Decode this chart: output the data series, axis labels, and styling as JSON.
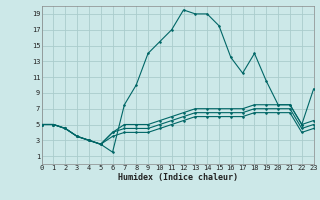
{
  "xlabel": "Humidex (Indice chaleur)",
  "bg_color": "#cce8e8",
  "grid_color": "#aacccc",
  "line_color": "#006666",
  "xlim": [
    0,
    23
  ],
  "ylim": [
    0,
    20
  ],
  "xticks": [
    0,
    1,
    2,
    3,
    4,
    5,
    6,
    7,
    8,
    9,
    10,
    11,
    12,
    13,
    14,
    15,
    16,
    17,
    18,
    19,
    20,
    21,
    22,
    23
  ],
  "yticks": [
    1,
    3,
    5,
    7,
    9,
    11,
    13,
    15,
    17,
    19
  ],
  "lines": [
    [
      5,
      5,
      4.5,
      3.5,
      3,
      2.5,
      1.5,
      7.5,
      10,
      14,
      15.5,
      17,
      19.5,
      19,
      19,
      17.5,
      13.5,
      11.5,
      14,
      10.5,
      7.5,
      7.5,
      5,
      9.5
    ],
    [
      5,
      5,
      4.5,
      3.5,
      3,
      2.5,
      4,
      5,
      5,
      5,
      5.5,
      6,
      6.5,
      7,
      7,
      7,
      7,
      7,
      7.5,
      7.5,
      7.5,
      7.5,
      5,
      5.5
    ],
    [
      5,
      5,
      4.5,
      3.5,
      3,
      2.5,
      4,
      4.5,
      4.5,
      4.5,
      5,
      5.5,
      6,
      6.5,
      6.5,
      6.5,
      6.5,
      6.5,
      7,
      7,
      7,
      7,
      4.5,
      5
    ],
    [
      5,
      5,
      4.5,
      3.5,
      3,
      2.5,
      3.5,
      4,
      4,
      4,
      4.5,
      5,
      5.5,
      6,
      6,
      6,
      6,
      6,
      6.5,
      6.5,
      6.5,
      6.5,
      4,
      4.5
    ]
  ]
}
